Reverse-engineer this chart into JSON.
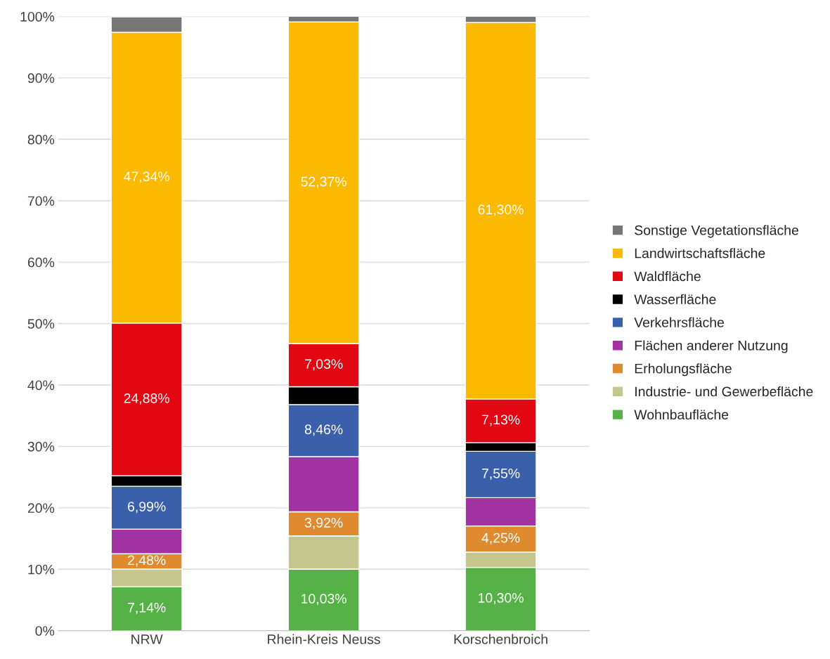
{
  "chart_data": {
    "type": "bar",
    "stacked": true,
    "categories": [
      "NRW",
      "Rhein-Kreis Neuss",
      "Korschenbroich"
    ],
    "series": [
      {
        "name": "Wohnbaufläche",
        "color": "#56b146",
        "values": [
          7.14,
          10.03,
          10.3
        ],
        "value_labels": [
          "7,14%",
          "10,03%",
          "10,30%"
        ]
      },
      {
        "name": "Industrie- und Gewerbefläche",
        "color": "#c5c68e",
        "values": [
          2.9,
          5.4,
          2.5
        ],
        "value_labels": [
          null,
          null,
          null
        ]
      },
      {
        "name": "Erholungsfläche",
        "color": "#df8a2f",
        "values": [
          2.48,
          3.92,
          4.25
        ],
        "value_labels": [
          "2,48%",
          "3,92%",
          "4,25%"
        ]
      },
      {
        "name": "Flächen anderer Nutzung",
        "color": "#a133a3",
        "values": [
          4.0,
          9.0,
          4.6
        ],
        "value_labels": [
          null,
          null,
          null
        ]
      },
      {
        "name": "Verkehrsfläche",
        "color": "#3a60ac",
        "values": [
          6.99,
          8.46,
          7.55
        ],
        "value_labels": [
          "6,99%",
          "8,46%",
          "7,55%"
        ]
      },
      {
        "name": "Wasserfläche",
        "color": "#000000",
        "values": [
          1.7,
          2.9,
          1.4
        ],
        "value_labels": [
          null,
          null,
          null
        ]
      },
      {
        "name": "Waldfläche",
        "color": "#e30613",
        "values": [
          24.88,
          7.03,
          7.13
        ],
        "value_labels": [
          "24,88%",
          "7,03%",
          "7,13%"
        ]
      },
      {
        "name": "Landwirtschaftsfläche",
        "color": "#fbb900",
        "values": [
          47.34,
          52.37,
          61.3
        ],
        "value_labels": [
          "47,34%",
          "52,37%",
          "61,30%"
        ]
      },
      {
        "name": "Sonstige Vegetationsfläche",
        "color": "#767676",
        "values": [
          2.5,
          0.9,
          1.0
        ],
        "value_labels": [
          null,
          null,
          null
        ]
      }
    ],
    "ylim": [
      0,
      100
    ],
    "yticks": [
      {
        "value": 0,
        "label": "0%"
      },
      {
        "value": 10,
        "label": "10%"
      },
      {
        "value": 20,
        "label": "20%"
      },
      {
        "value": 30,
        "label": "30%"
      },
      {
        "value": 40,
        "label": "40%"
      },
      {
        "value": 50,
        "label": "50%"
      },
      {
        "value": 60,
        "label": "60%"
      },
      {
        "value": 70,
        "label": "70%"
      },
      {
        "value": 80,
        "label": "80%"
      },
      {
        "value": 90,
        "label": "90%"
      },
      {
        "value": 100,
        "label": "100%"
      }
    ],
    "grid": "y",
    "legend": "right"
  }
}
